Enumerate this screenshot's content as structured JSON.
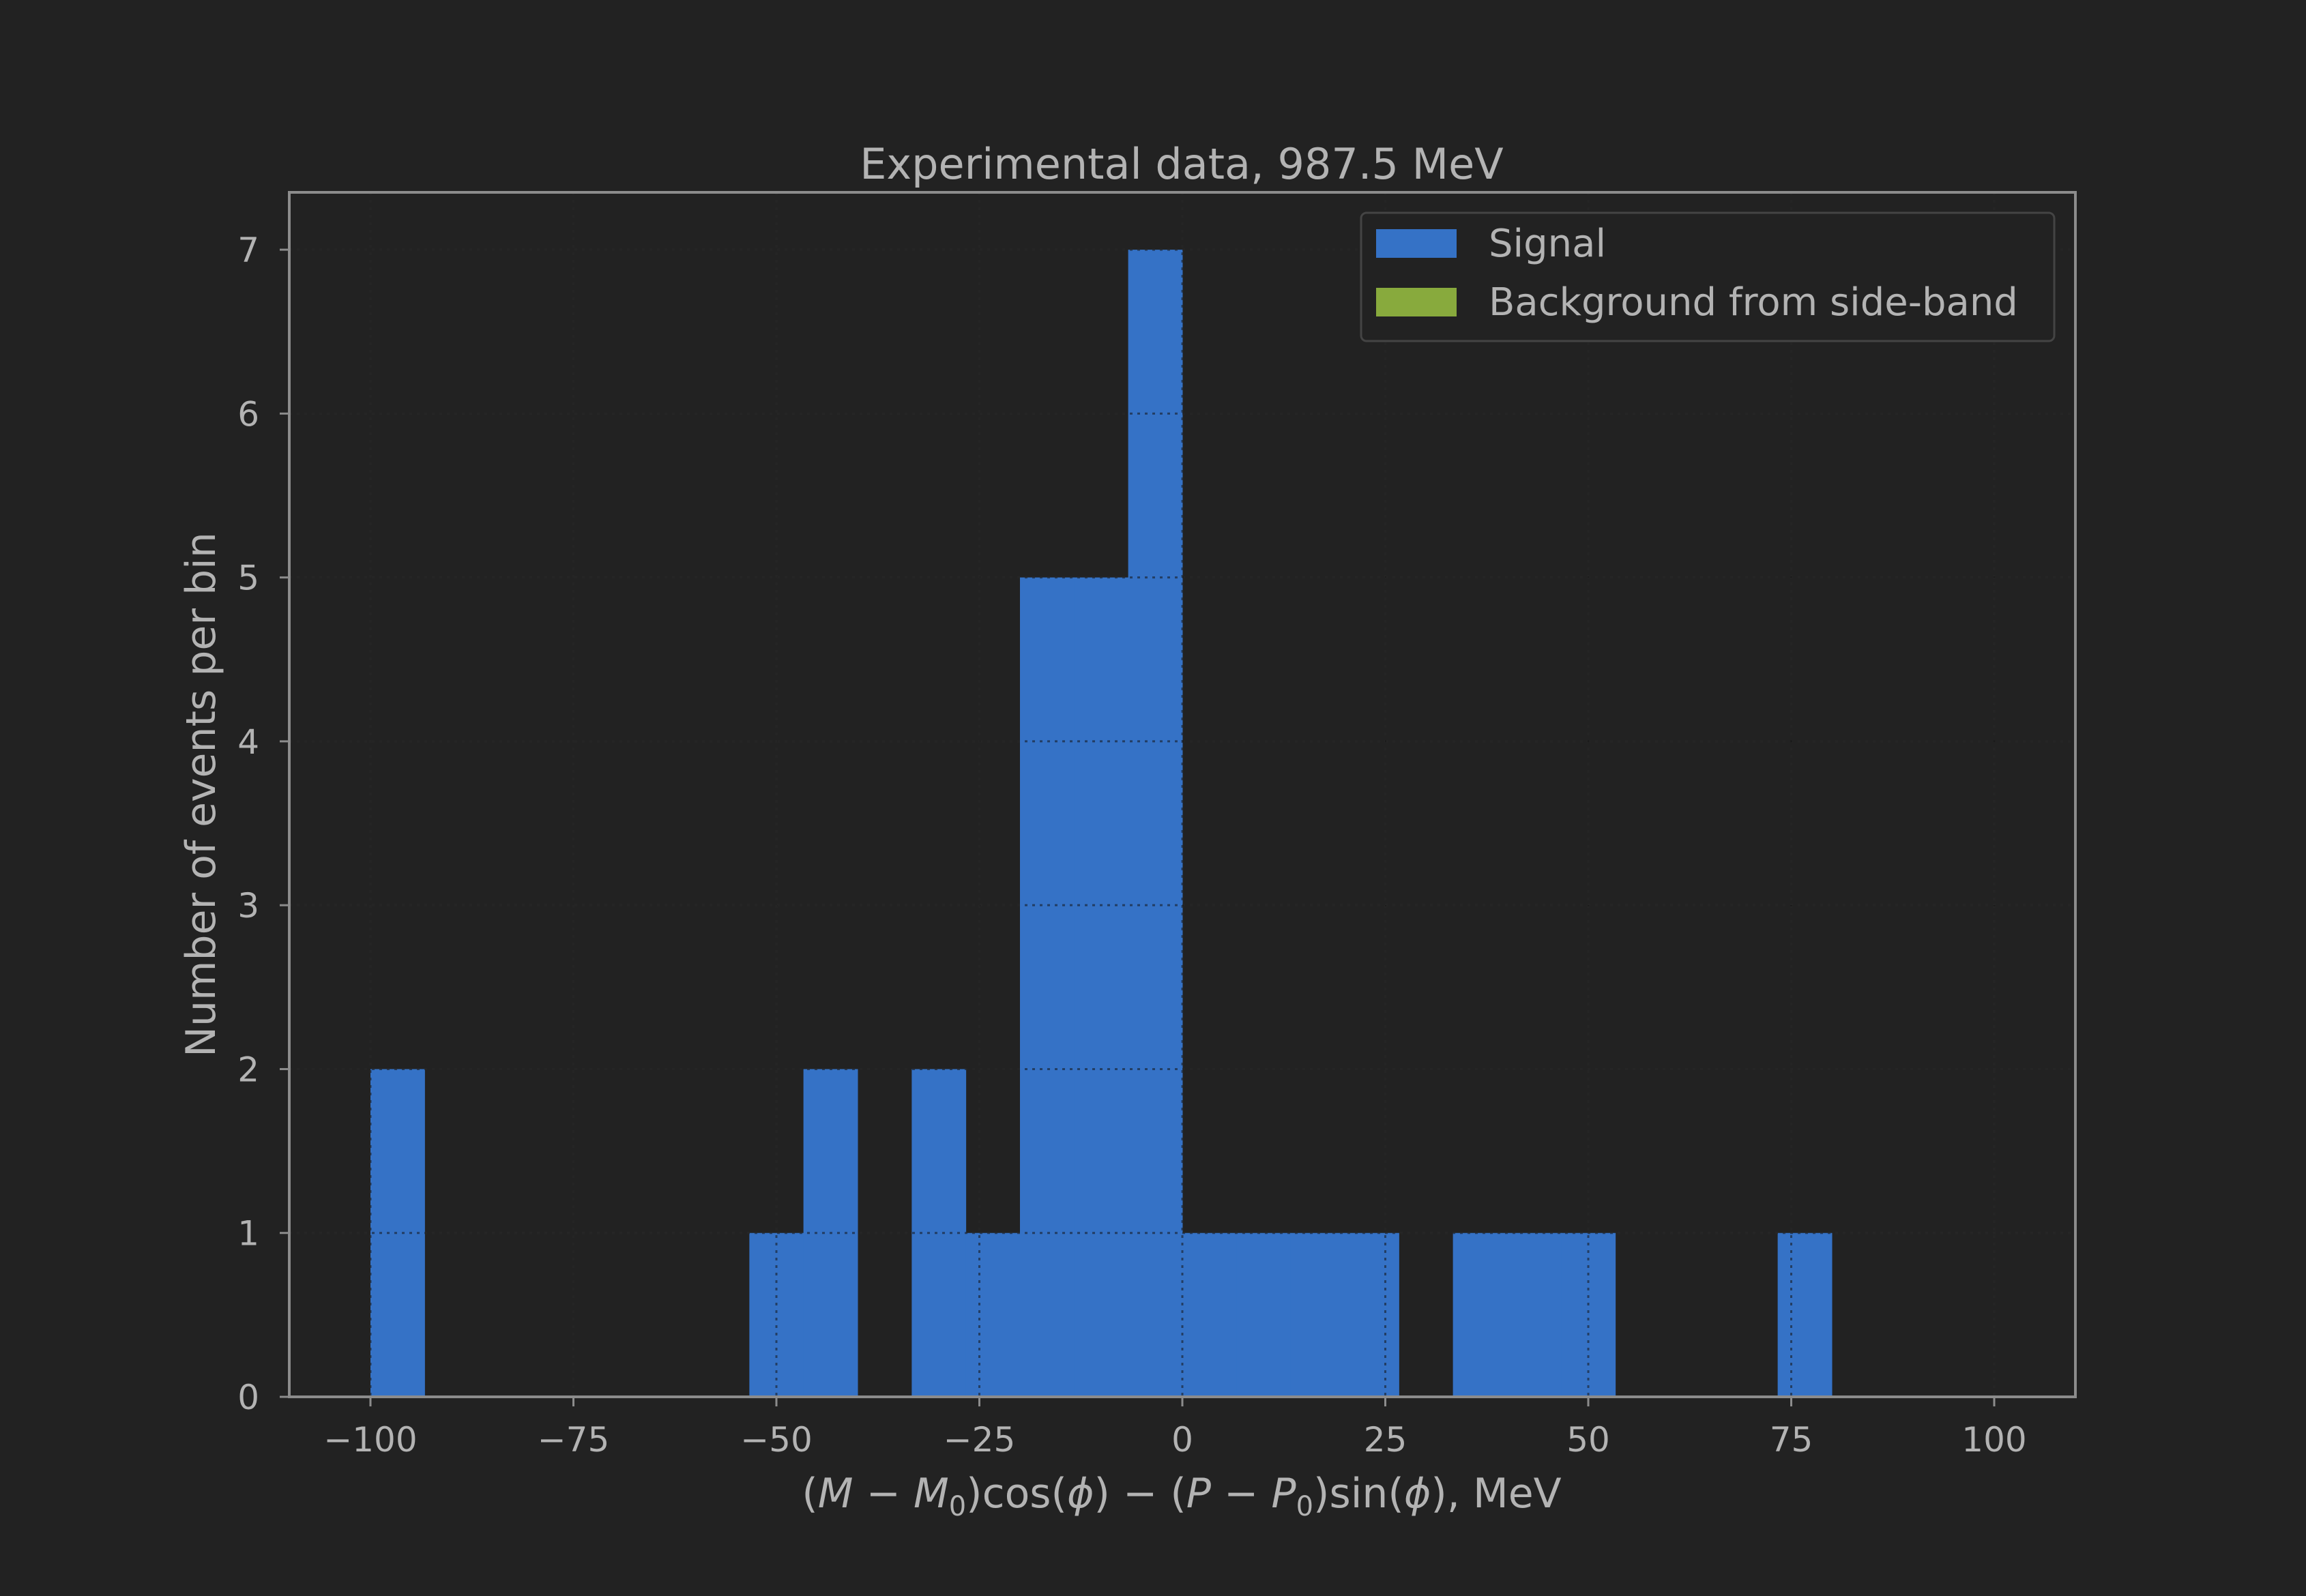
{
  "chart_data": {
    "type": "bar",
    "title": "Experimental data, 987.5 MeV",
    "xlabel_parts": {
      "open1": "(",
      "M": "M",
      "minus1": " − ",
      "M0": "M",
      "sub0a": "0",
      "close1": ")cos(",
      "phi1": "ϕ",
      "close2": ") − (",
      "P": "P",
      "minus2": " − ",
      "P0": "P",
      "sub0b": "0",
      "close3": ")sin(",
      "phi2": "ϕ",
      "tail": "), MeV"
    },
    "ylabel": "Number of events per bin",
    "xlim": [
      -110,
      110
    ],
    "ylim": [
      0,
      7.35
    ],
    "xticks": [
      -100,
      -75,
      -50,
      -25,
      0,
      25,
      50,
      75,
      100
    ],
    "xtick_labels": [
      "−100",
      "−75",
      "−50",
      "−25",
      "0",
      "25",
      "50",
      "75",
      "100"
    ],
    "yticks": [
      0,
      1,
      2,
      3,
      4,
      5,
      6,
      7
    ],
    "ytick_labels": [
      "0",
      "1",
      "2",
      "3",
      "4",
      "5",
      "6",
      "7"
    ],
    "grid": true,
    "legend_position": "top-right",
    "bin_width": 6.667,
    "series": [
      {
        "name": "Signal",
        "color": "#3572c6",
        "bins": [
          {
            "x0": -100.0,
            "x1": -93.33,
            "count": 2
          },
          {
            "x0": -53.33,
            "x1": -46.67,
            "count": 1
          },
          {
            "x0": -46.67,
            "x1": -40.0,
            "count": 2
          },
          {
            "x0": -33.33,
            "x1": -26.67,
            "count": 2
          },
          {
            "x0": -26.67,
            "x1": -20.0,
            "count": 1
          },
          {
            "x0": -20.0,
            "x1": -13.33,
            "count": 5
          },
          {
            "x0": -13.33,
            "x1": -6.67,
            "count": 5
          },
          {
            "x0": -6.67,
            "x1": 0.0,
            "count": 7
          },
          {
            "x0": 0.0,
            "x1": 6.67,
            "count": 1
          },
          {
            "x0": 6.67,
            "x1": 13.33,
            "count": 1
          },
          {
            "x0": 13.33,
            "x1": 20.0,
            "count": 1
          },
          {
            "x0": 20.0,
            "x1": 26.67,
            "count": 1
          },
          {
            "x0": 33.33,
            "x1": 40.0,
            "count": 1
          },
          {
            "x0": 40.0,
            "x1": 46.67,
            "count": 1
          },
          {
            "x0": 46.67,
            "x1": 53.33,
            "count": 1
          },
          {
            "x0": 73.33,
            "x1": 80.0,
            "count": 1
          }
        ]
      },
      {
        "name": "Background from side-band",
        "color": "#88aa3d",
        "bins": []
      }
    ],
    "colors": {
      "background": "#222222",
      "axes_edge": "#8c8c8c",
      "grid": "#3a3a3a",
      "text": "#b3b3b3",
      "legend_edge": "#444444"
    }
  }
}
